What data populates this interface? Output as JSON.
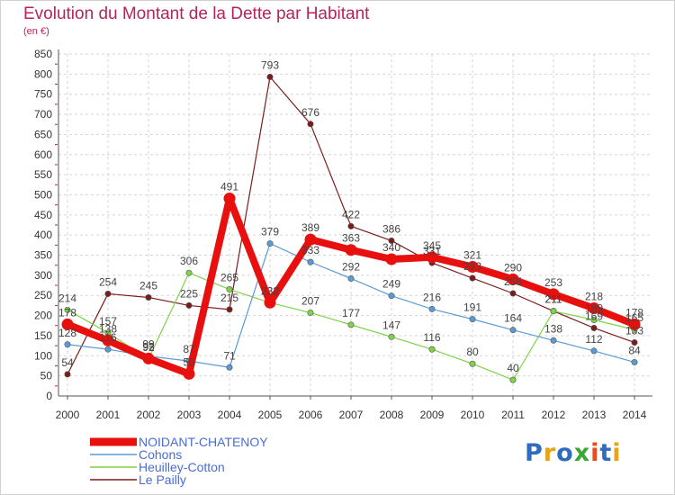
{
  "header": {
    "title": "Evolution du Montant de la Dette par Habitant",
    "unit": "(en €)"
  },
  "logo": {
    "text": "Proxiti",
    "colors": [
      "#2f6bbf",
      "#e8a317",
      "#2f6bbf",
      "#39a935",
      "#e84c1c",
      "#2f6bbf",
      "#e8a317"
    ]
  },
  "chart_data": {
    "type": "line",
    "title": "Evolution du Montant de la Dette par Habitant",
    "subtitle": "(en €)",
    "x": [
      "2000",
      "2001",
      "2002",
      "2003",
      "2004",
      "2005",
      "2006",
      "2007",
      "2008",
      "2009",
      "2010",
      "2011",
      "2012",
      "2013",
      "2014"
    ],
    "y_ticks": [
      "0",
      "50",
      "100",
      "150",
      "200",
      "250",
      "300",
      "350",
      "400",
      "450",
      "500",
      "550",
      "600",
      "650",
      "700",
      "750",
      "800",
      "850"
    ],
    "ylim": [
      0,
      850
    ],
    "grid": true,
    "legend_position": "bottom-left",
    "series": [
      {
        "name": "NOIDANT-CHATENOY",
        "color": "#e8100f",
        "values": [
          178,
          138,
          93,
          55,
          491,
          232,
          389,
          363,
          340,
          345,
          321,
          290,
          253,
          218,
          178
        ]
      },
      {
        "name": "Cohons",
        "color": "#5b9bd5",
        "values": [
          128,
          116,
          99,
          87,
          71,
          379,
          333,
          292,
          249,
          216,
          191,
          164,
          138,
          112,
          84
        ]
      },
      {
        "name": "Heuilley-Cotton",
        "color": "#7ed348",
        "values": [
          214,
          157,
          92,
          306,
          265,
          232,
          207,
          177,
          147,
          116,
          80,
          40,
          211,
          189,
          165
        ]
      },
      {
        "name": "Le Pailly",
        "color": "#7b1c1c",
        "values": [
          54,
          254,
          245,
          225,
          215,
          793,
          676,
          422,
          386,
          331,
          293,
          255,
          211,
          169,
          133
        ]
      }
    ]
  }
}
